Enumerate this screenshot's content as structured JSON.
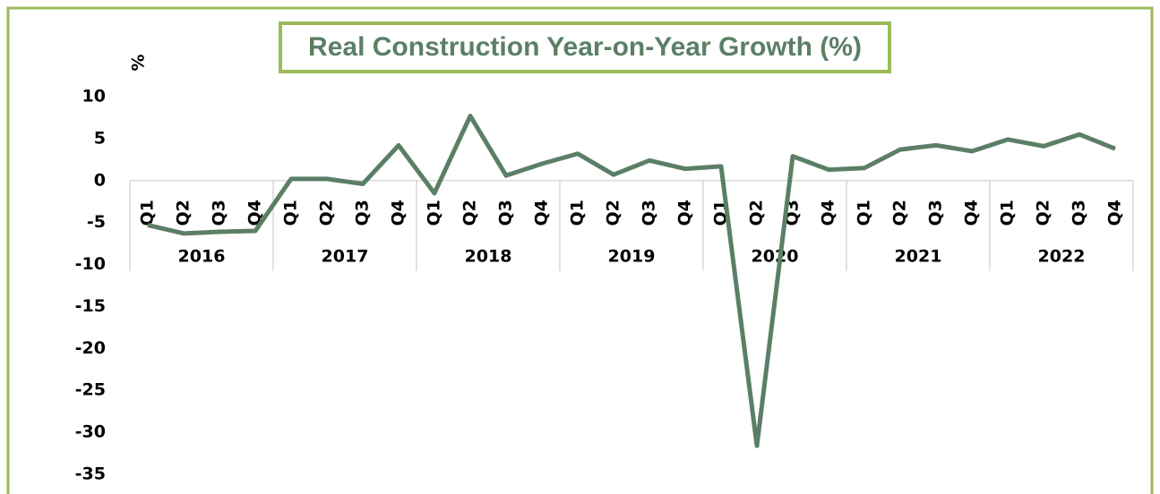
{
  "chart_data": {
    "type": "line",
    "title": "Real Construction Year-on-Year Growth (%)",
    "y_label": "%",
    "categories": [
      "Q1",
      "Q2",
      "Q3",
      "Q4",
      "Q1",
      "Q2",
      "Q3",
      "Q4",
      "Q1",
      "Q2",
      "Q3",
      "Q4",
      "Q1",
      "Q2",
      "Q3",
      "Q4",
      "Q1",
      "Q2",
      "Q3",
      "Q4",
      "Q1",
      "Q2",
      "Q3",
      "Q4",
      "Q1",
      "Q2",
      "Q3",
      "Q4"
    ],
    "years": [
      "2016",
      "2017",
      "2018",
      "2019",
      "2020",
      "2021",
      "2022"
    ],
    "series": [
      {
        "color": "#5b7f66",
        "values": [
          -5.3,
          -6.3,
          -6.1,
          -6.0,
          0.2,
          0.2,
          -0.4,
          4.2,
          -1.5,
          7.7,
          0.6,
          2.0,
          3.2,
          0.7,
          2.4,
          1.4,
          1.7,
          -31.6,
          2.9,
          1.3,
          1.5,
          3.7,
          4.2,
          3.5,
          4.9,
          4.1,
          5.5,
          3.8
        ]
      }
    ],
    "ylim": [
      -35,
      10
    ],
    "yticks": [
      10,
      5,
      0,
      -5,
      -10,
      -15,
      -20,
      -25,
      -30,
      -35
    ],
    "grid": false
  }
}
